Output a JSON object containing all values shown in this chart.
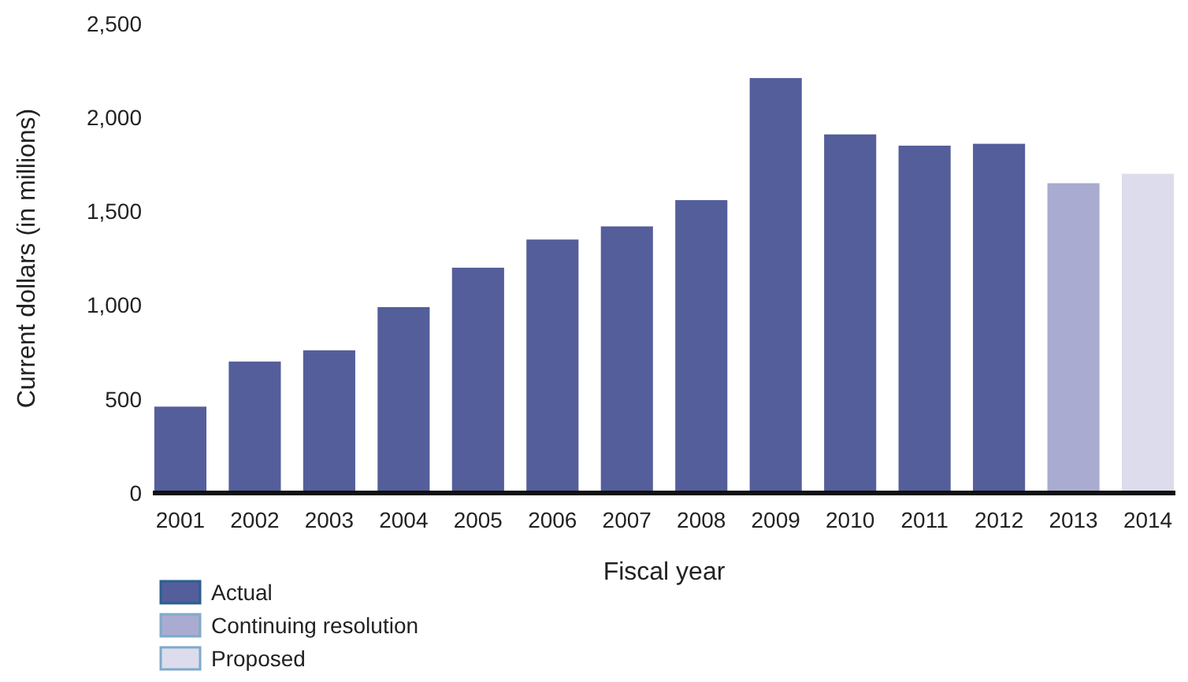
{
  "chart_data": {
    "type": "bar",
    "xlabel": "Fiscal year",
    "ylabel": "Current dollars (in millions)",
    "categories": [
      "2001",
      "2002",
      "2003",
      "2004",
      "2005",
      "2006",
      "2007",
      "2008",
      "2009",
      "2010",
      "2011",
      "2012",
      "2013",
      "2014"
    ],
    "series": [
      {
        "name": "Actual",
        "color": "#545e9a",
        "values": [
          460,
          700,
          760,
          990,
          1200,
          1350,
          1420,
          1560,
          2210,
          1910,
          1850,
          1860,
          null,
          null
        ]
      },
      {
        "name": "Continuing resolution",
        "color": "#a9acd0",
        "values": [
          null,
          null,
          null,
          null,
          null,
          null,
          null,
          null,
          null,
          null,
          null,
          null,
          1650,
          null
        ]
      },
      {
        "name": "Proposed",
        "color": "#dcdcec",
        "values": [
          null,
          null,
          null,
          null,
          null,
          null,
          null,
          null,
          null,
          null,
          null,
          null,
          null,
          1700
        ]
      }
    ],
    "ylim": [
      0,
      2500
    ],
    "yticks": [
      0,
      {
        "value": 500,
        "label": "500"
      },
      {
        "value": 1000,
        "label": "1,000"
      },
      {
        "value": 1500,
        "label": "1,500"
      },
      {
        "value": 2000,
        "label": "2,000"
      },
      {
        "value": 2500,
        "label": "2,500"
      }
    ],
    "grid": false,
    "legend": "bottom left"
  }
}
